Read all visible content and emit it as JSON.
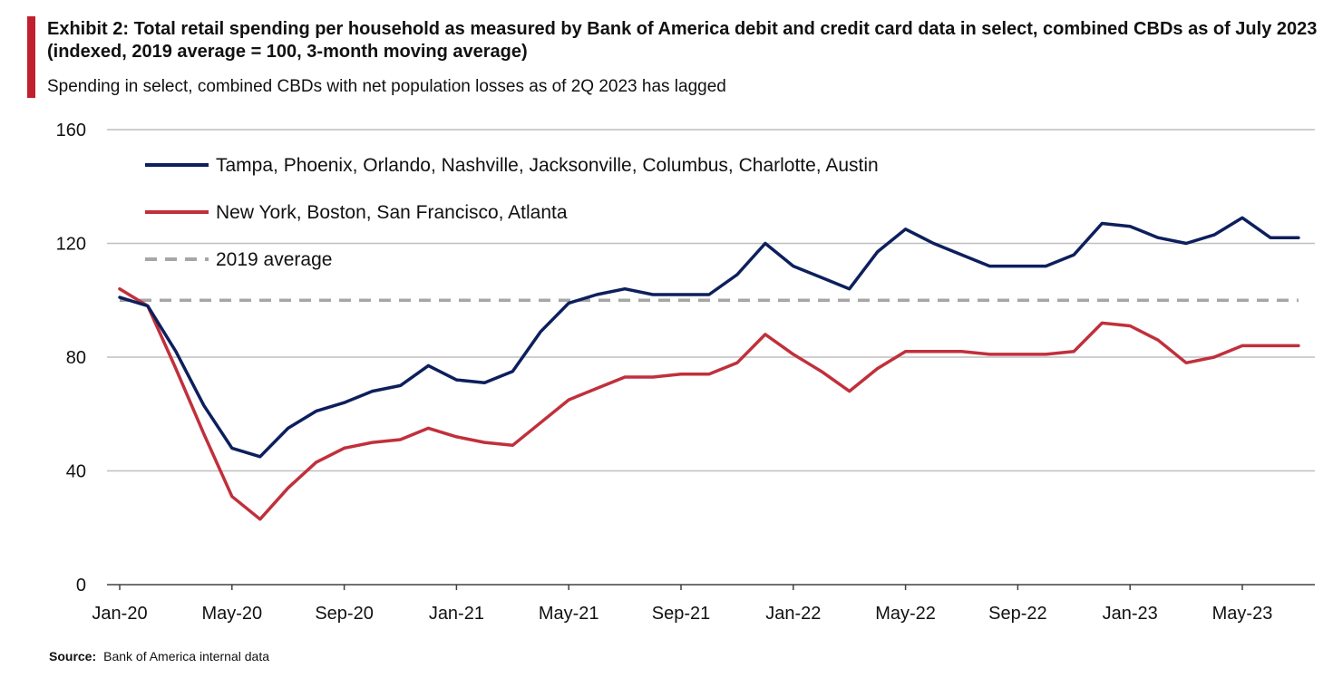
{
  "header": {
    "title": "Exhibit 2: Total retail spending per household as measured by Bank of America debit and credit card data in select, combined CBDs as of July 2023 (indexed, 2019 average = 100, 3-month moving average)",
    "subtitle": "Spending in select, combined CBDs with net population losses as of 2Q 2023 has lagged"
  },
  "footer": {
    "source_label": "Source:",
    "source_text": "Bank of America internal data"
  },
  "colors": {
    "accent": "#c0202e",
    "series_sunbelt": "#0d1f5c",
    "series_gateway": "#c0303b",
    "baseline": "#a6a6a6",
    "grid": "#bfbfbf"
  },
  "chart_data": {
    "type": "line",
    "title": "",
    "xlabel": "",
    "ylabel": "",
    "ylim": [
      0,
      160
    ],
    "yticks": [
      "0",
      "40",
      "80",
      "120",
      "160"
    ],
    "grid": true,
    "legend_position": "top-left",
    "x": [
      "Jan-20",
      "Feb-20",
      "Mar-20",
      "Apr-20",
      "May-20",
      "Jun-20",
      "Jul-20",
      "Aug-20",
      "Sep-20",
      "Oct-20",
      "Nov-20",
      "Dec-20",
      "Jan-21",
      "Feb-21",
      "Mar-21",
      "Apr-21",
      "May-21",
      "Jun-21",
      "Jul-21",
      "Aug-21",
      "Sep-21",
      "Oct-21",
      "Nov-21",
      "Dec-21",
      "Jan-22",
      "Feb-22",
      "Mar-22",
      "Apr-22",
      "May-22",
      "Jun-22",
      "Jul-22",
      "Aug-22",
      "Sep-22",
      "Oct-22",
      "Nov-22",
      "Dec-22",
      "Jan-23",
      "Feb-23",
      "Mar-23",
      "Apr-23",
      "May-23",
      "Jun-23",
      "Jul-23"
    ],
    "xtick_labels": [
      "Jan-20",
      "May-20",
      "Sep-20",
      "Jan-21",
      "May-21",
      "Sep-21",
      "Jan-22",
      "May-22",
      "Sep-22",
      "Jan-23",
      "May-23"
    ],
    "series": [
      {
        "name": "Tampa, Phoenix, Orlando, Nashville, Jacksonville, Columbus, Charlotte, Austin",
        "values": [
          101,
          98,
          82,
          63,
          48,
          45,
          55,
          61,
          64,
          68,
          70,
          77,
          72,
          71,
          75,
          89,
          99,
          102,
          104,
          102,
          102,
          102,
          109,
          120,
          112,
          108,
          104,
          117,
          125,
          120,
          116,
          112,
          112,
          112,
          116,
          127,
          126,
          122,
          120,
          123,
          129,
          122,
          122
        ]
      },
      {
        "name": "New York, Boston, San Francisco, Atlanta",
        "values": [
          104,
          98,
          76,
          53,
          31,
          23,
          34,
          43,
          48,
          50,
          51,
          55,
          52,
          50,
          49,
          57,
          65,
          69,
          73,
          73,
          74,
          74,
          78,
          88,
          81,
          75,
          68,
          76,
          82,
          82,
          82,
          81,
          81,
          81,
          82,
          92,
          91,
          86,
          78,
          80,
          84,
          84,
          84
        ]
      },
      {
        "name": "2019 average",
        "values": [
          100,
          100,
          100,
          100,
          100,
          100,
          100,
          100,
          100,
          100,
          100,
          100,
          100,
          100,
          100,
          100,
          100,
          100,
          100,
          100,
          100,
          100,
          100,
          100,
          100,
          100,
          100,
          100,
          100,
          100,
          100,
          100,
          100,
          100,
          100,
          100,
          100,
          100,
          100,
          100,
          100,
          100,
          100
        ],
        "style": "dashed"
      }
    ]
  }
}
